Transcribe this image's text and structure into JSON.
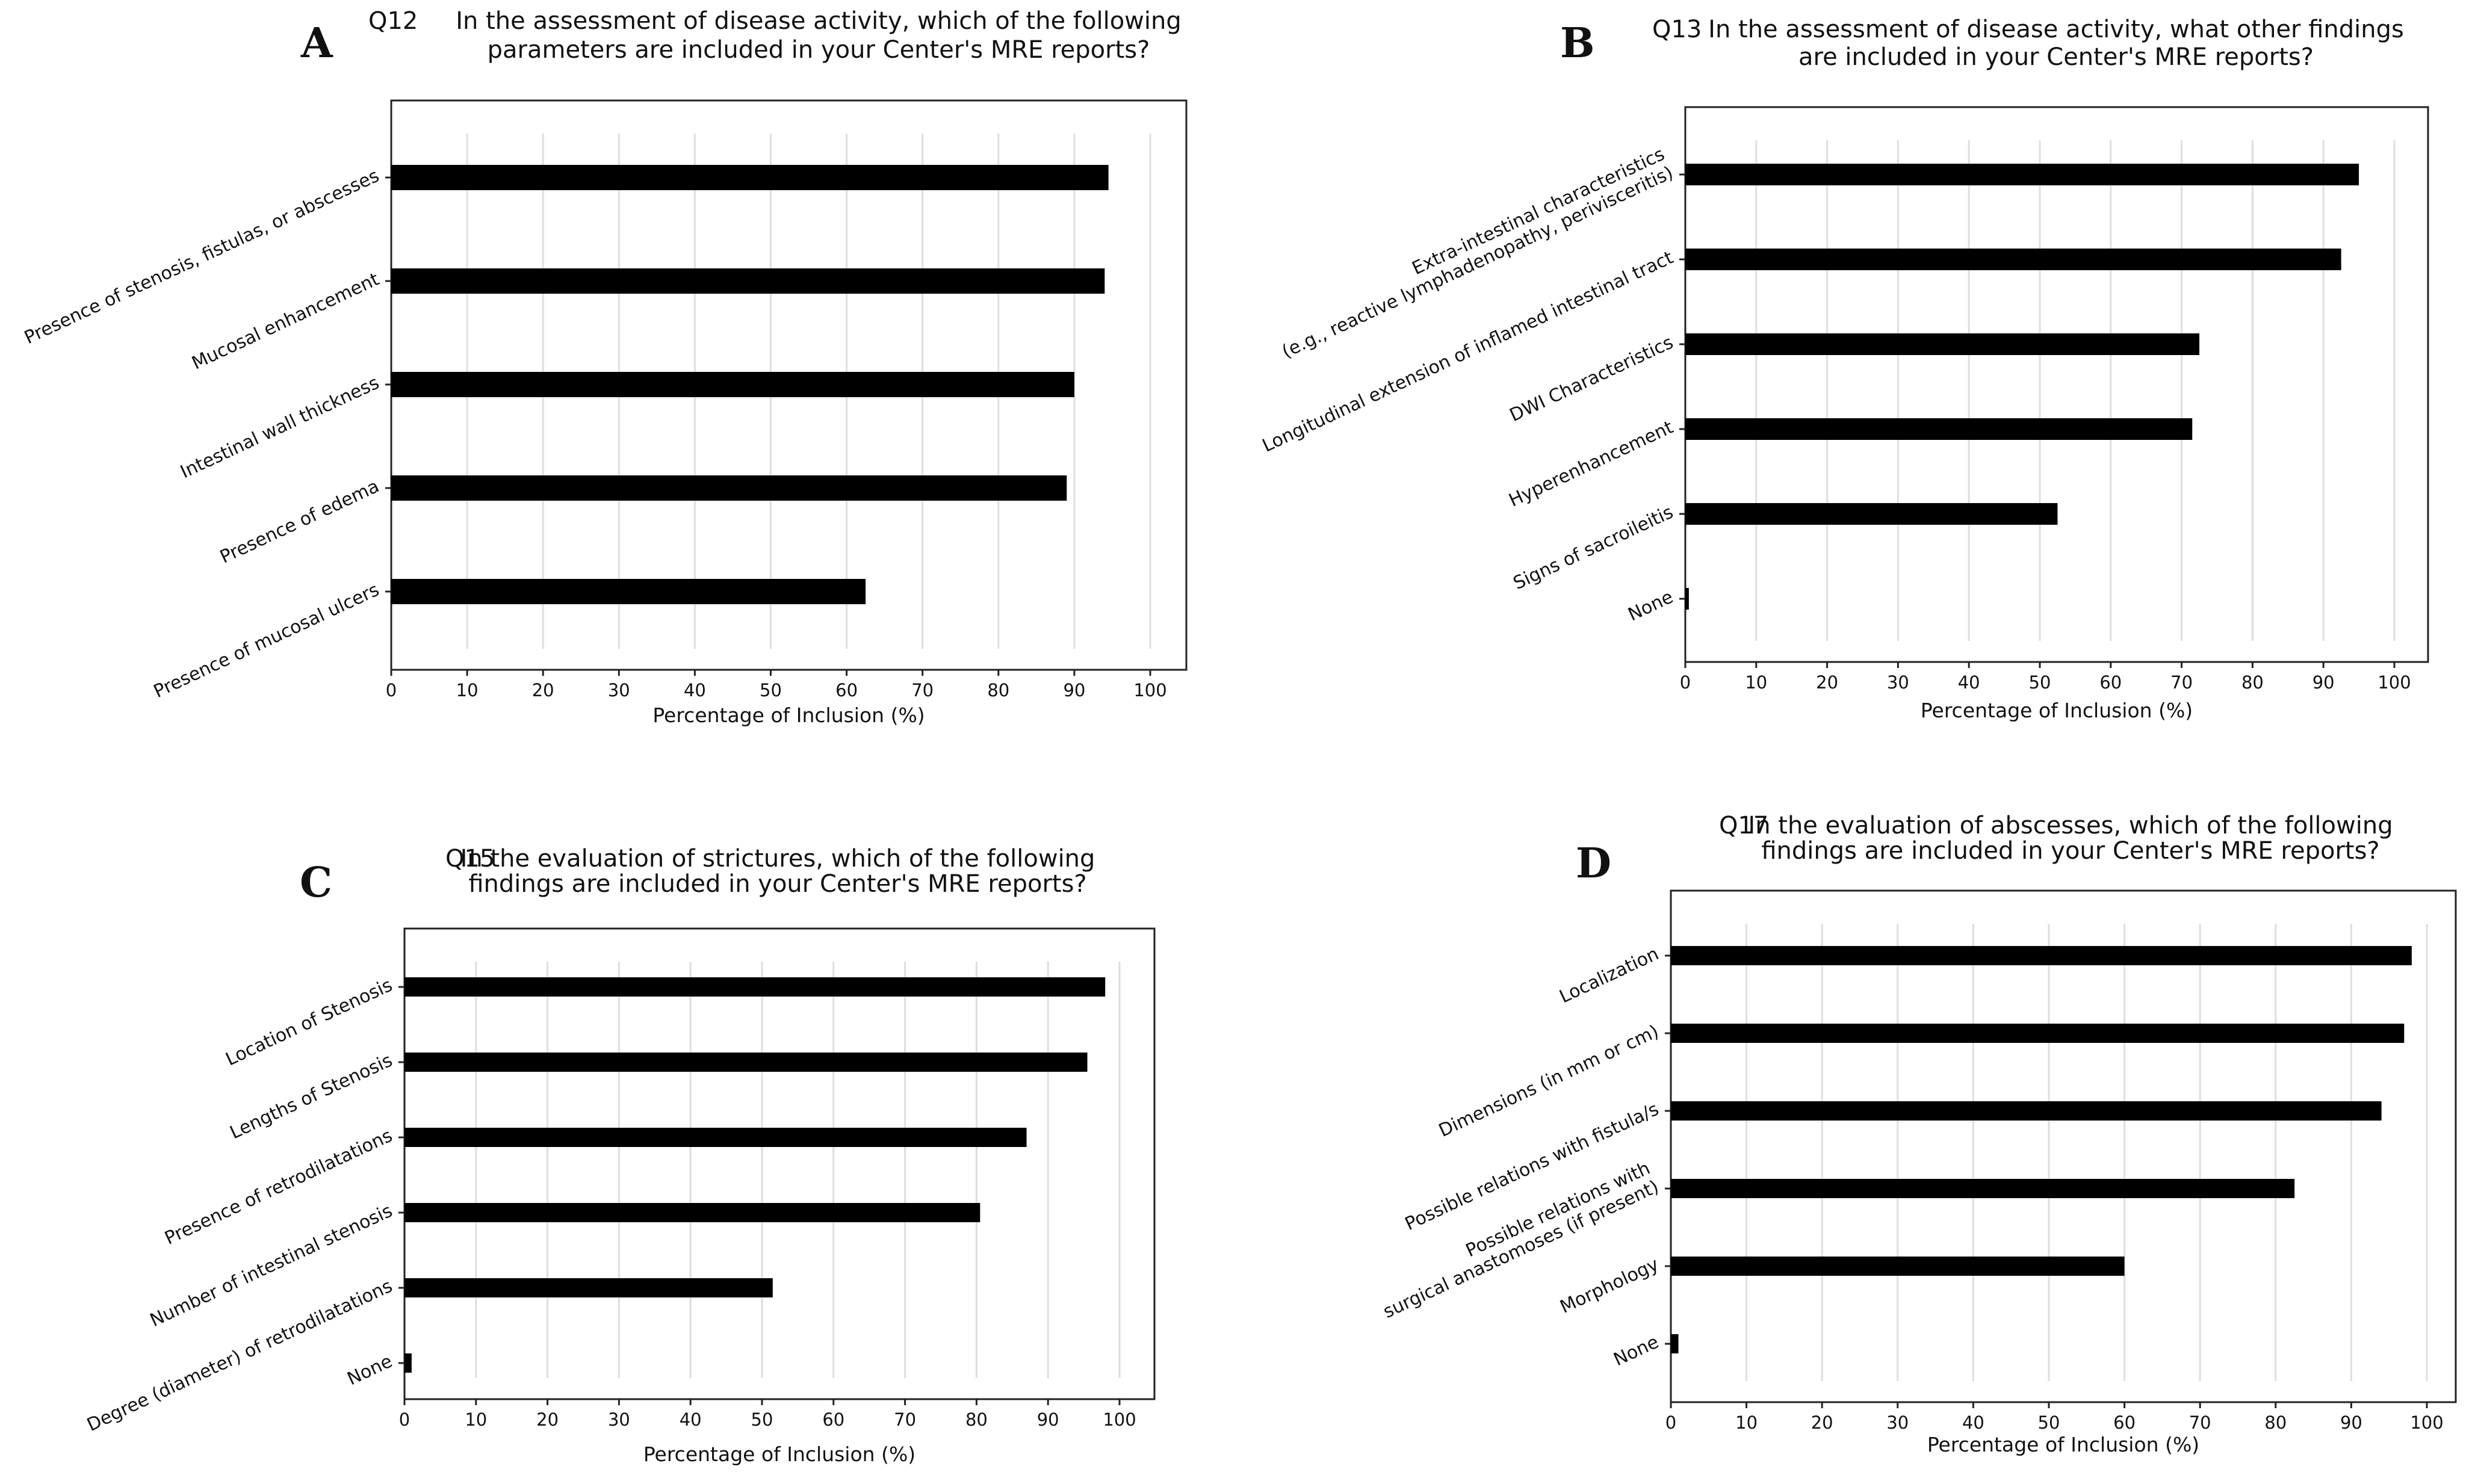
{
  "chart_data": [
    {
      "panel": "A",
      "type": "bar",
      "orientation": "horizontal",
      "question": "Q12",
      "title_lines": [
        "In the assessment of disease activity, which of the following",
        "parameters are included in your Center's MRE reports?"
      ],
      "categories": [
        "Presence of stenosis, fistulas, or abscesses",
        "Mucosal enhancement",
        "Intestinal wall thickness",
        "Presence of edema",
        "Presence of mucosal ulcers"
      ],
      "values": [
        94.5,
        94.0,
        90.0,
        89.0,
        62.5
      ],
      "xlabel": "Percentage of Inclusion (%)",
      "xlim": [
        0,
        105
      ],
      "xticks": [
        0,
        10,
        20,
        30,
        40,
        50,
        60,
        70,
        80,
        90,
        100
      ],
      "grid": "vertical",
      "bar_color": "#000000"
    },
    {
      "panel": "B",
      "type": "bar",
      "orientation": "horizontal",
      "question": "Q13",
      "title_lines": [
        "In the assessment of disease activity, what other findings",
        "are included in your Center's MRE reports?"
      ],
      "categories": [
        [
          "Extra-intestinal characteristics",
          "(e.g., reactive lymphadenopathy, perivisceritis)"
        ],
        "Longitudinal extension of inflamed intestinal tract",
        "DWI Characteristics",
        "Hyperenhancement",
        "Signs of sacroileitis",
        "None"
      ],
      "values": [
        95.0,
        92.5,
        72.5,
        71.5,
        52.5,
        0.5
      ],
      "xlabel": "Percentage of Inclusion (%)",
      "xlim": [
        0,
        105
      ],
      "xticks": [
        0,
        10,
        20,
        30,
        40,
        50,
        60,
        70,
        80,
        90,
        100
      ],
      "grid": "vertical",
      "bar_color": "#000000"
    },
    {
      "panel": "C",
      "type": "bar",
      "orientation": "horizontal",
      "question": "Q15",
      "title_lines": [
        "In the evaluation of strictures, which of the following",
        "findings are included in your Center's MRE reports?"
      ],
      "categories": [
        "Location of Stenosis",
        "Lengths of Stenosis",
        "Presence of retrodilatations",
        "Number of intestinal stenosis",
        "Degree (diameter) of retrodilatations",
        "None"
      ],
      "values": [
        98.0,
        95.5,
        87.0,
        80.5,
        51.5,
        1.0
      ],
      "xlabel": "Percentage of Inclusion (%)",
      "xlim": [
        0,
        105
      ],
      "xticks": [
        0,
        10,
        20,
        30,
        40,
        50,
        60,
        70,
        80,
        90,
        100
      ],
      "grid": "vertical",
      "bar_color": "#000000"
    },
    {
      "panel": "D",
      "type": "bar",
      "orientation": "horizontal",
      "question": "Q17",
      "title_lines": [
        "In the evaluation of abscesses, which of the following",
        "findings are included in your Center's MRE reports?"
      ],
      "categories": [
        "Localization",
        "Dimensions (in mm or cm)",
        "Possible relations with fistula/s",
        [
          "Possible relations with",
          "surgical anastomoses (if present)"
        ],
        "Morphology",
        "None"
      ],
      "values": [
        98.0,
        97.0,
        94.0,
        82.5,
        60.0,
        1.0
      ],
      "xlabel": "Percentage of Inclusion (%)",
      "xlim": [
        0,
        105
      ],
      "xticks": [
        0,
        10,
        20,
        30,
        40,
        50,
        60,
        70,
        80,
        90,
        100
      ],
      "grid": "vertical",
      "bar_color": "#000000"
    }
  ]
}
